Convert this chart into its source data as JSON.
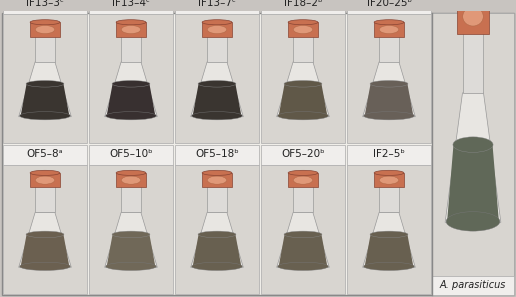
{
  "row1_labels": [
    "OF5–8ᵃ",
    "OF5–10ᵇ",
    "OF5–18ᵇ",
    "OF5–20ᵇ",
    "IF2–5ᵇ"
  ],
  "row2_labels": [
    "IF13–3ᶜ",
    "IF13–4ᶜ",
    "IF13–7ᶜ",
    "IF18–2ᵇ",
    "IF20–25ᵇ"
  ],
  "control_label": "A. parasiticus",
  "bg_color": "#e8e4e0",
  "cell_bg": "#d8d4cf",
  "border_color": "#aaaaaa",
  "label_bg": "#f0eeec",
  "flask_body_color": "#c8c0b0",
  "flask_neck_color": "#d8d4cc",
  "cap_color": "#c87050",
  "cap_inner_color": "#e09878",
  "mold_colors_row1": [
    "#6b6050",
    "#706858",
    "#686050",
    "#686050",
    "#686050"
  ],
  "mold_colors_row2": [
    "#3a3530",
    "#383030",
    "#3a3530",
    "#605848",
    "#686058"
  ],
  "control_mold_color": "#606858",
  "outer_bg": "#c8c4c0"
}
